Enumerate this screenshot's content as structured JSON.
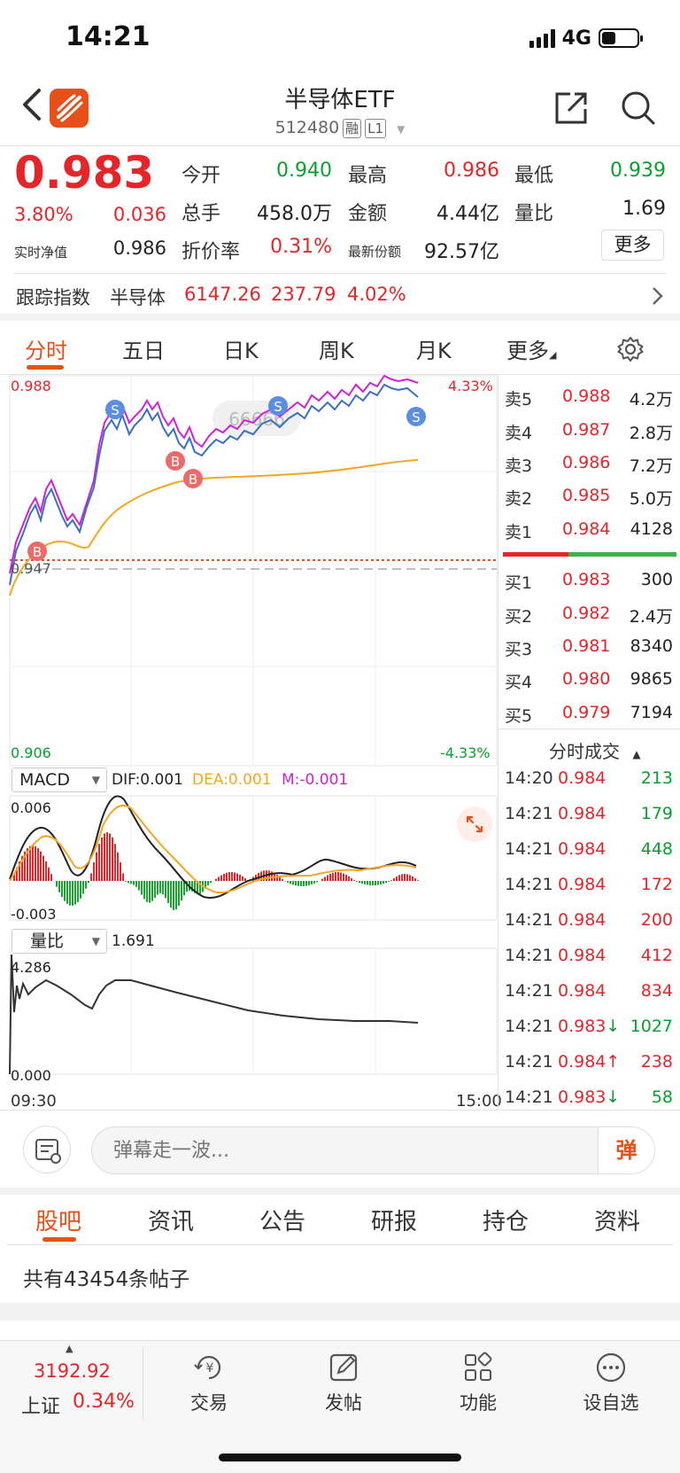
{
  "status_bar": {
    "time": "14:21",
    "network": "4G"
  },
  "header": {
    "title": "半导体ETF",
    "code": "512480",
    "tag1": "融",
    "tag2": "L1"
  },
  "quote": {
    "price": "0.983",
    "change_pct": "3.80%",
    "change": "0.036",
    "nav_label": "实时净值",
    "nav": "0.986",
    "fields": [
      {
        "label": "今开",
        "value": "0.940",
        "color": "green"
      },
      {
        "label": "最高",
        "value": "0.986",
        "color": "red"
      },
      {
        "label": "最低",
        "value": "0.939",
        "color": "green"
      },
      {
        "label": "总手",
        "value": "458.0万",
        "color": "black"
      },
      {
        "label": "金额",
        "value": "4.44亿",
        "color": "black"
      },
      {
        "label": "量比",
        "value": "1.69",
        "color": "black"
      },
      {
        "label": "折价率",
        "value": "0.31%",
        "color": "red"
      },
      {
        "label": "最新份额",
        "value": "92.57亿",
        "color": "black"
      }
    ],
    "more_label": "更多"
  },
  "tracking": {
    "label": "跟踪指数",
    "name": "半导体",
    "value": "6147.26",
    "change": "237.79",
    "pct": "4.02%"
  },
  "tabs": [
    "分时",
    "五日",
    "日K",
    "周K",
    "月K",
    "更多"
  ],
  "chart": {
    "price_max": "0.988",
    "price_min": "0.906",
    "pct_max": "4.33%",
    "pct_min": "-4.33%",
    "prev_close": "0.947",
    "watermark": "66666",
    "macd_selector": "MACD",
    "dif": "DIF:0.001",
    "dea": "DEA:0.001",
    "m": "M:-0.001",
    "macd_max": "0.006",
    "macd_min": "-0.003",
    "vr_selector": "量比",
    "vr_value": "1.691",
    "vr_max": "4.286",
    "vr_min": "0.000",
    "time_start": "09:30",
    "time_end": "15:00",
    "buy_marker": "B",
    "sell_marker": "S"
  },
  "order_book": {
    "asks": [
      {
        "label": "卖5",
        "price": "0.988",
        "vol": "4.2万"
      },
      {
        "label": "卖4",
        "price": "0.987",
        "vol": "2.8万"
      },
      {
        "label": "卖3",
        "price": "0.986",
        "vol": "7.2万"
      },
      {
        "label": "卖2",
        "price": "0.985",
        "vol": "5.0万"
      },
      {
        "label": "卖1",
        "price": "0.984",
        "vol": "4128"
      }
    ],
    "bids": [
      {
        "label": "买1",
        "price": "0.983",
        "vol": "300"
      },
      {
        "label": "买2",
        "price": "0.982",
        "vol": "2.4万"
      },
      {
        "label": "买3",
        "price": "0.981",
        "vol": "8340"
      },
      {
        "label": "买4",
        "price": "0.980",
        "vol": "9865"
      },
      {
        "label": "买5",
        "price": "0.979",
        "vol": "7194"
      }
    ]
  },
  "trades": {
    "title": "分时成交",
    "rows": [
      {
        "time": "14:20",
        "price": "0.984",
        "vol": "213",
        "dir": "",
        "color": "green"
      },
      {
        "time": "14:21",
        "price": "0.984",
        "vol": "179",
        "dir": "",
        "color": "green"
      },
      {
        "time": "14:21",
        "price": "0.984",
        "vol": "448",
        "dir": "",
        "color": "green"
      },
      {
        "time": "14:21",
        "price": "0.984",
        "vol": "172",
        "dir": "",
        "color": "red"
      },
      {
        "time": "14:21",
        "price": "0.984",
        "vol": "200",
        "dir": "",
        "color": "red"
      },
      {
        "time": "14:21",
        "price": "0.984",
        "vol": "412",
        "dir": "",
        "color": "red"
      },
      {
        "time": "14:21",
        "price": "0.984",
        "vol": "834",
        "dir": "",
        "color": "red"
      },
      {
        "time": "14:21",
        "price": "0.983",
        "vol": "1027",
        "dir": "↓",
        "color": "green"
      },
      {
        "time": "14:21",
        "price": "0.984",
        "vol": "238",
        "dir": "↑",
        "color": "red"
      },
      {
        "time": "14:21",
        "price": "0.983",
        "vol": "58",
        "dir": "↓",
        "color": "green"
      }
    ]
  },
  "comment": {
    "placeholder": "弹幕走一波...",
    "button": "弹"
  },
  "info_tabs": [
    "股吧",
    "资讯",
    "公告",
    "研报",
    "持仓",
    "资料"
  ],
  "post_count": "共有43454条帖子",
  "bottom": {
    "index_value": "3192.92",
    "index_name": "上证",
    "index_pct": "0.34%",
    "items": [
      "交易",
      "发帖",
      "功能",
      "设自选"
    ]
  },
  "colors": {
    "accent": "#e8501a",
    "up": "#e5252a",
    "down": "#0aa02f",
    "price_line": "#3a6fc4",
    "index_line": "#d020d8",
    "avg_line": "#f5a623"
  }
}
